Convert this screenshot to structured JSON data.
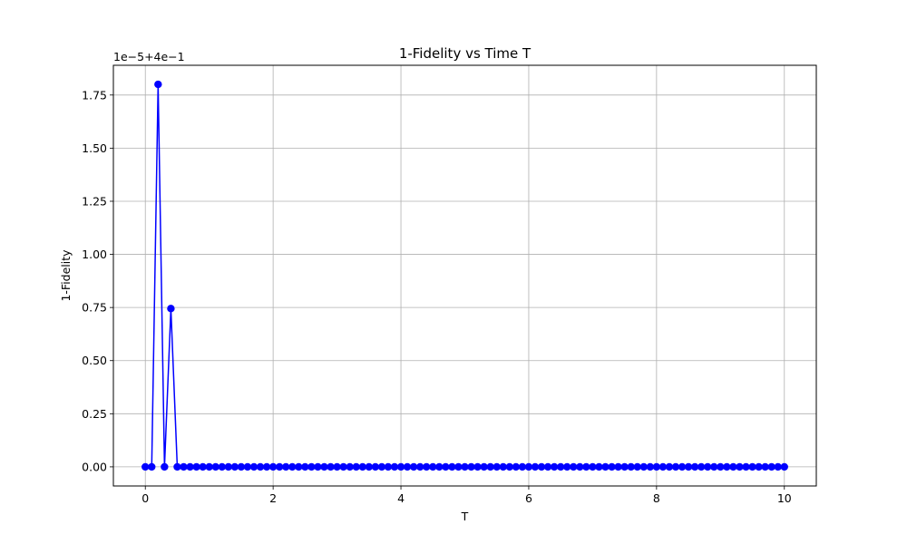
{
  "chart_data": {
    "type": "line",
    "title": "1-Fidelity vs Time T",
    "xlabel": "T",
    "ylabel": "1-Fidelity",
    "offset_text": "1e−5+4e−1",
    "xlim": [
      -0.5,
      10.5
    ],
    "ylim": [
      -0.09,
      1.89
    ],
    "x_ticks": [
      0,
      2,
      4,
      6,
      8,
      10
    ],
    "x_tick_labels": [
      "0",
      "2",
      "4",
      "6",
      "8",
      "10"
    ],
    "y_ticks": [
      0.0,
      0.25,
      0.5,
      0.75,
      1.0,
      1.25,
      1.5,
      1.75
    ],
    "y_tick_labels": [
      "0.00",
      "0.25",
      "0.50",
      "0.75",
      "1.00",
      "1.25",
      "1.50",
      "1.75"
    ],
    "grid": true,
    "color": "#0000ff",
    "marker": "circle",
    "series": [
      {
        "x_start": 0,
        "x_step": 0.1,
        "values": [
          0,
          0,
          1.8,
          0,
          0.745,
          0,
          0,
          0,
          0,
          0,
          0,
          0,
          0,
          0,
          0,
          0,
          0,
          0,
          0,
          0,
          0,
          0,
          0,
          0,
          0,
          0,
          0,
          0,
          0,
          0,
          0,
          0,
          0,
          0,
          0,
          0,
          0,
          0,
          0,
          0,
          0,
          0,
          0,
          0,
          0,
          0,
          0,
          0,
          0,
          0,
          0,
          0,
          0,
          0,
          0,
          0,
          0,
          0,
          0,
          0,
          0,
          0,
          0,
          0,
          0,
          0,
          0,
          0,
          0,
          0,
          0,
          0,
          0,
          0,
          0,
          0,
          0,
          0,
          0,
          0,
          0,
          0,
          0,
          0,
          0,
          0,
          0,
          0,
          0,
          0,
          0,
          0,
          0,
          0,
          0,
          0,
          0,
          0,
          0,
          0,
          0
        ]
      }
    ]
  }
}
